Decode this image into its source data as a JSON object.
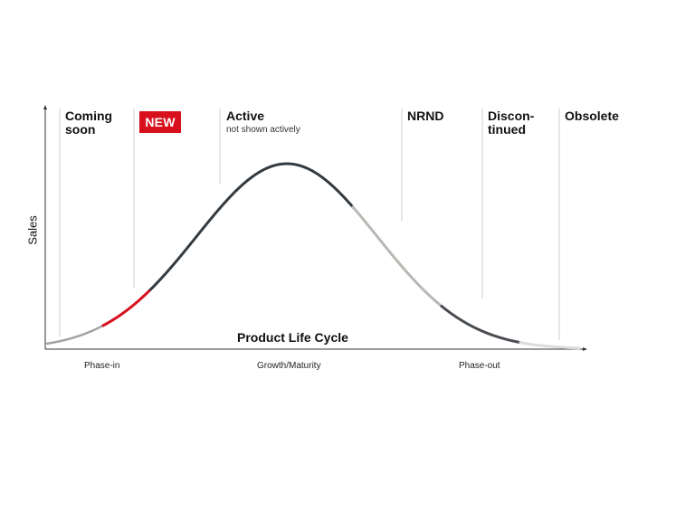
{
  "stages": {
    "coming_soon_line1": "Coming",
    "coming_soon_line2": "soon",
    "new_badge": "NEW",
    "active": "Active",
    "active_sub": "not shown actively",
    "nrnd": "NRND",
    "discontinued_line1": "Discon-",
    "discontinued_line2": "tinued",
    "obsolete": "Obsolete"
  },
  "axis": {
    "x_title": "Product Life Cycle",
    "y_title": "Sales"
  },
  "phases": {
    "phase_in": "Phase-in",
    "growth": "Growth/Maturity",
    "phase_out": "Phase-out"
  },
  "colors": {
    "new_accent": "#d8101d",
    "curve_dark": "#333a40",
    "curve_light": "#b8b8b4",
    "divider": "#cfcfcf"
  }
}
